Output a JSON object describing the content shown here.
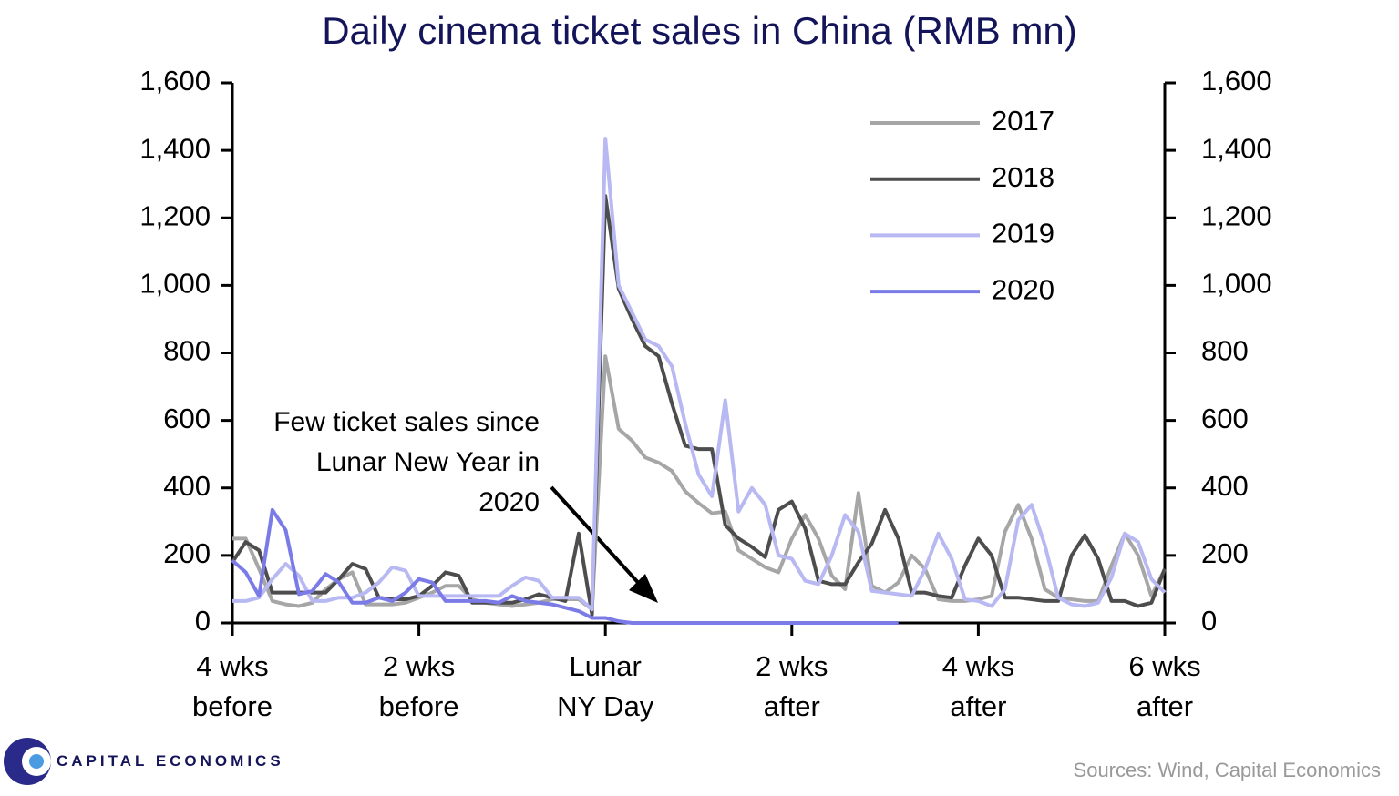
{
  "chart_data": {
    "type": "line",
    "title": "Daily cinema ticket sales in China (RMB mn)",
    "annotation": "Few ticket sales since Lunar New Year in 2020",
    "source": "Sources: Wind, Capital Economics",
    "brand": "CAPITAL ECONOMICS",
    "x": [
      -28,
      -27,
      -26,
      -25,
      -24,
      -23,
      -22,
      -21,
      -20,
      -19,
      -18,
      -17,
      -16,
      -15,
      -14,
      -13,
      -12,
      -11,
      -10,
      -9,
      -8,
      -7,
      -6,
      -5,
      -4,
      -3,
      -2,
      -1,
      0,
      1,
      2,
      3,
      4,
      5,
      6,
      7,
      8,
      9,
      10,
      11,
      12,
      13,
      14,
      15,
      16,
      17,
      18,
      19,
      20,
      21,
      22,
      23,
      24,
      25,
      26,
      27,
      28,
      29,
      30,
      31,
      32,
      33,
      34,
      35,
      36,
      37,
      38,
      39,
      40,
      41,
      42
    ],
    "xlim": [
      -28,
      42
    ],
    "xticks": [
      {
        "value": -28,
        "label": "4 wks before"
      },
      {
        "value": -14,
        "label": "2 wks before"
      },
      {
        "value": 0,
        "label": "Lunar NY Day"
      },
      {
        "value": 14,
        "label": "2 wks after"
      },
      {
        "value": 28,
        "label": "4 wks after"
      },
      {
        "value": 42,
        "label": "6 wks after"
      }
    ],
    "ylim": [
      0,
      1600
    ],
    "yticks": [
      0,
      200,
      400,
      600,
      800,
      {
        "value": 1000,
        "label": "1,000"
      },
      {
        "value": 1200,
        "label": "1,200"
      },
      {
        "value": 1400,
        "label": "1,400"
      },
      {
        "value": 1600,
        "label": "1,600"
      }
    ],
    "legend": "upper right",
    "series": [
      {
        "name": "2017",
        "color": "#a6a6a6",
        "values": [
          250,
          250,
          160,
          65,
          55,
          50,
          60,
          100,
          130,
          150,
          55,
          55,
          55,
          60,
          75,
          90,
          110,
          110,
          70,
          60,
          55,
          50,
          55,
          60,
          70,
          70,
          70,
          40,
          790,
          575,
          540,
          490,
          475,
          450,
          390,
          355,
          325,
          330,
          215,
          190,
          165,
          150,
          250,
          320,
          250,
          140,
          100,
          385,
          110,
          90,
          120,
          200,
          160,
          70,
          65,
          65,
          70,
          80,
          270,
          350,
          250,
          100,
          75,
          70,
          65,
          65,
          170,
          265,
          200,
          80,
          160
        ]
      },
      {
        "name": "2018",
        "color": "#4d4d4d",
        "values": [
          180,
          240,
          215,
          90,
          90,
          90,
          90,
          90,
          130,
          175,
          160,
          75,
          70,
          70,
          80,
          110,
          150,
          140,
          60,
          60,
          60,
          60,
          70,
          85,
          75,
          65,
          265,
          25,
          1265,
          990,
          900,
          820,
          790,
          650,
          525,
          515,
          515,
          290,
          250,
          225,
          195,
          335,
          360,
          280,
          125,
          115,
          115,
          180,
          235,
          335,
          250,
          90,
          90,
          80,
          75,
          170,
          250,
          200,
          75,
          75,
          70,
          65,
          65,
          200,
          260,
          190,
          65,
          65,
          50,
          60,
          160
        ]
      },
      {
        "name": "2019",
        "color": "#b8b8f2",
        "values": [
          65,
          65,
          75,
          130,
          175,
          140,
          65,
          65,
          75,
          75,
          90,
          120,
          165,
          155,
          80,
          80,
          80,
          80,
          80,
          80,
          80,
          110,
          135,
          125,
          75,
          75,
          75,
          40,
          1435,
          1000,
          920,
          840,
          820,
          760,
          590,
          440,
          375,
          660,
          330,
          400,
          350,
          200,
          190,
          125,
          115,
          200,
          320,
          270,
          95,
          90,
          85,
          80,
          160,
          265,
          190,
          70,
          65,
          50,
          100,
          305,
          350,
          230,
          75,
          55,
          50,
          60,
          135,
          265,
          240,
          130,
          90
        ]
      },
      {
        "name": "2020",
        "color": "#7b7be8",
        "values": [
          185,
          150,
          80,
          335,
          275,
          85,
          95,
          145,
          120,
          60,
          60,
          75,
          65,
          90,
          130,
          120,
          65,
          65,
          65,
          65,
          60,
          80,
          65,
          60,
          55,
          45,
          35,
          15,
          15,
          5,
          0,
          0,
          0,
          0,
          0,
          0,
          0,
          0,
          0,
          0,
          0,
          0,
          0,
          0,
          0,
          0,
          0,
          0,
          0,
          0,
          0,
          null,
          null,
          null,
          null,
          null,
          null,
          null,
          null,
          null,
          null,
          null,
          null,
          null,
          null,
          null,
          null,
          null,
          null,
          null,
          null
        ]
      }
    ]
  }
}
